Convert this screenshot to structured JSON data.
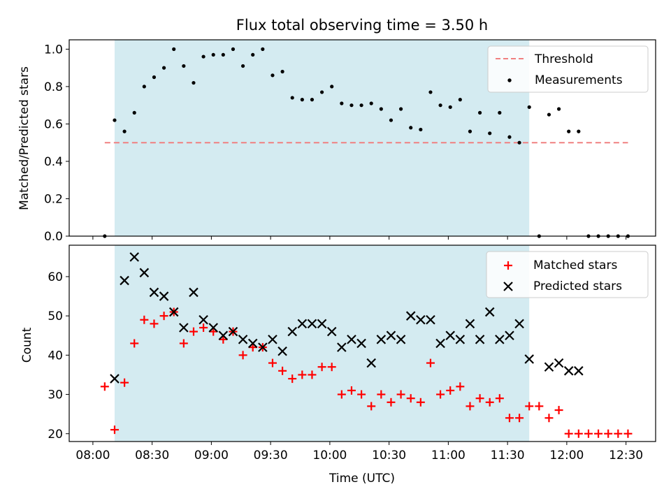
{
  "figure": {
    "title": "Flux total observing time = 3.50 h",
    "xlabel": "Time (UTC)",
    "xticks": [
      "08:00",
      "08:30",
      "09:00",
      "09:30",
      "10:00",
      "10:30",
      "11:00",
      "11:30",
      "12:00",
      "12:30"
    ],
    "x_minutes": [
      0,
      30,
      60,
      90,
      120,
      150,
      180,
      210,
      240,
      270
    ],
    "observing_window_min": [
      11,
      221
    ],
    "window_color": "#d4ebf1"
  },
  "chart_data": [
    {
      "type": "scatter",
      "panel": "top",
      "title": "Flux total observing time = 3.50 h",
      "ylabel": "Matched/Predicted stars",
      "xlabel": "",
      "xlim_min": [
        -12,
        285
      ],
      "ylim": [
        0,
        1.05
      ],
      "yticks": [
        "0.0",
        "0.2",
        "0.4",
        "0.6",
        "0.8",
        "1.0"
      ],
      "ytick_values": [
        0,
        0.2,
        0.4,
        0.6,
        0.8,
        1.0
      ],
      "legend": "top-right",
      "threshold": {
        "name": "Threshold",
        "value": 0.5,
        "x": [
          6,
          271
        ],
        "color": "#f08080"
      },
      "series": [
        {
          "name": "Measurements",
          "color": "#000000",
          "x_min": [
            6,
            11,
            16,
            21,
            26,
            31,
            36,
            41,
            46,
            51,
            56,
            61,
            66,
            71,
            76,
            81,
            86,
            91,
            96,
            101,
            106,
            111,
            116,
            121,
            126,
            131,
            136,
            141,
            146,
            151,
            156,
            161,
            166,
            171,
            176,
            181,
            186,
            191,
            196,
            201,
            206,
            211,
            216,
            221,
            226,
            231,
            236,
            241,
            246,
            251,
            256,
            261,
            266,
            271
          ],
          "values": [
            0.0,
            0.62,
            0.56,
            0.66,
            0.8,
            0.85,
            0.9,
            1.0,
            0.91,
            0.82,
            0.96,
            0.97,
            0.97,
            1.0,
            0.91,
            0.97,
            1.0,
            0.86,
            0.88,
            0.74,
            0.73,
            0.73,
            0.77,
            0.8,
            0.71,
            0.7,
            0.7,
            0.71,
            0.68,
            0.62,
            0.68,
            0.58,
            0.57,
            0.77,
            0.7,
            0.69,
            0.73,
            0.56,
            0.66,
            0.55,
            0.66,
            0.53,
            0.5,
            0.69,
            0.0,
            0.65,
            0.68,
            0.56,
            0.56,
            0.0,
            0.0,
            0.0,
            0.0,
            0.0
          ]
        }
      ]
    },
    {
      "type": "scatter",
      "panel": "bottom",
      "ylabel": "Count",
      "xlabel": "Time (UTC)",
      "xlim_min": [
        -12,
        285
      ],
      "ylim": [
        18,
        68
      ],
      "yticks": [
        "20",
        "30",
        "40",
        "50",
        "60"
      ],
      "ytick_values": [
        20,
        30,
        40,
        50,
        60
      ],
      "legend": "top-right",
      "series": [
        {
          "name": "Matched stars",
          "marker": "+",
          "color": "#ff0000",
          "x_min": [
            6,
            11,
            16,
            21,
            26,
            31,
            36,
            41,
            46,
            51,
            56,
            61,
            66,
            71,
            76,
            81,
            86,
            91,
            96,
            101,
            106,
            111,
            116,
            121,
            126,
            131,
            136,
            141,
            146,
            151,
            156,
            161,
            166,
            171,
            176,
            181,
            186,
            191,
            196,
            201,
            206,
            211,
            216,
            221,
            226,
            231,
            236,
            241,
            246,
            251,
            256,
            261,
            266,
            271
          ],
          "values": [
            32,
            21,
            33,
            43,
            49,
            48,
            50,
            51,
            43,
            46,
            47,
            46,
            44,
            46,
            40,
            42,
            42,
            38,
            36,
            34,
            35,
            35,
            37,
            37,
            30,
            31,
            30,
            27,
            30,
            28,
            30,
            29,
            28,
            38,
            30,
            31,
            32,
            27,
            29,
            28,
            29,
            24,
            24,
            27,
            27,
            24,
            26,
            20,
            20,
            20,
            20,
            20,
            20,
            20
          ]
        },
        {
          "name": "Predicted stars",
          "marker": "x",
          "color": "#000000",
          "x_min": [
            11,
            16,
            21,
            26,
            31,
            36,
            41,
            46,
            51,
            56,
            61,
            66,
            71,
            76,
            81,
            86,
            91,
            96,
            101,
            106,
            111,
            116,
            121,
            126,
            131,
            136,
            141,
            146,
            151,
            156,
            161,
            166,
            171,
            176,
            181,
            186,
            191,
            196,
            201,
            206,
            211,
            216,
            221,
            231,
            236,
            241,
            246
          ],
          "values": [
            34,
            59,
            65,
            61,
            56,
            55,
            51,
            47,
            56,
            49,
            47,
            45,
            46,
            44,
            43,
            42,
            44,
            41,
            46,
            48,
            48,
            48,
            46,
            42,
            44,
            43,
            38,
            44,
            45,
            44,
            50,
            49,
            49,
            43,
            45,
            44,
            48,
            44,
            51,
            44,
            45,
            48,
            39,
            37,
            38,
            36,
            36
          ]
        }
      ]
    }
  ]
}
